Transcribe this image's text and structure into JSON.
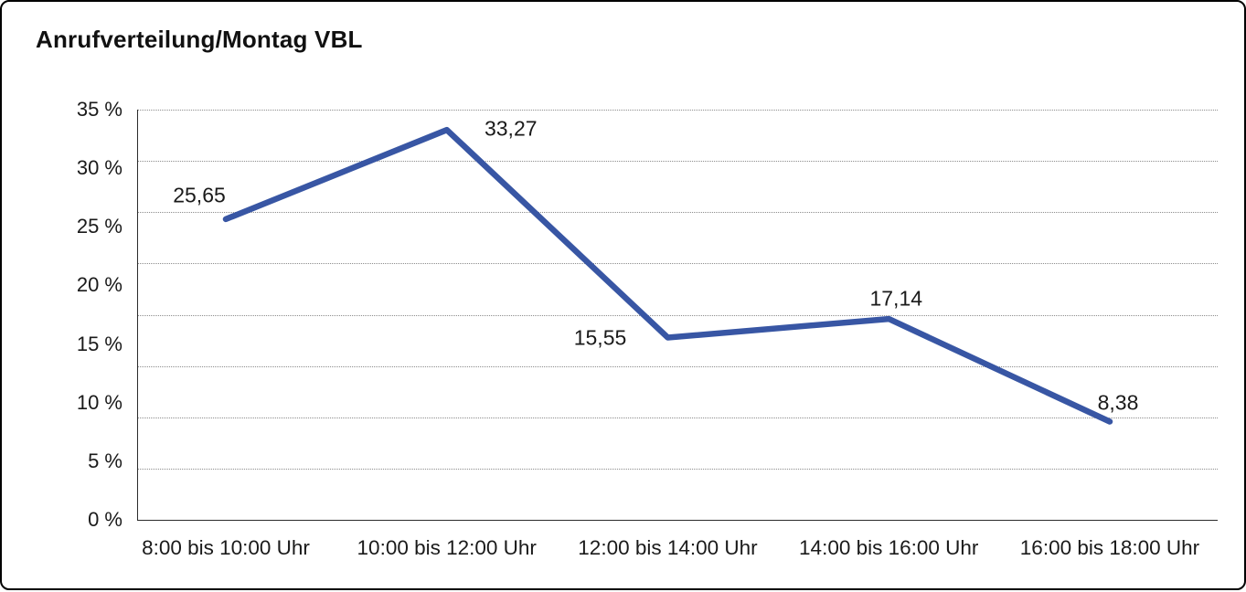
{
  "title": "Anrufverteilung/Montag VBL",
  "chart_data": {
    "type": "line",
    "title": "Anrufverteilung/Montag VBL",
    "categories": [
      "8:00 bis 10:00 Uhr",
      "10:00 bis 12:00 Uhr",
      "12:00 bis 14:00 Uhr",
      "14:00 bis 16:00 Uhr",
      "16:00 bis 18:00 Uhr"
    ],
    "values": [
      25.65,
      33.27,
      15.55,
      17.14,
      8.38
    ],
    "value_labels": [
      "25,65",
      "33,27",
      "15,55",
      "17,14",
      "8,38"
    ],
    "series_name": "",
    "xlabel": "",
    "ylabel": "",
    "ylim": [
      0,
      35
    ],
    "ytick_step": 5,
    "ytick_labels": [
      "35 %",
      "30 %",
      "25 %",
      "20 %",
      "15 %",
      "10 %",
      "5 %",
      "0 %"
    ],
    "grid": "horizontal-dotted",
    "legend": "none",
    "line_color": "#3856a4",
    "text_color": "#1a1a1a"
  }
}
